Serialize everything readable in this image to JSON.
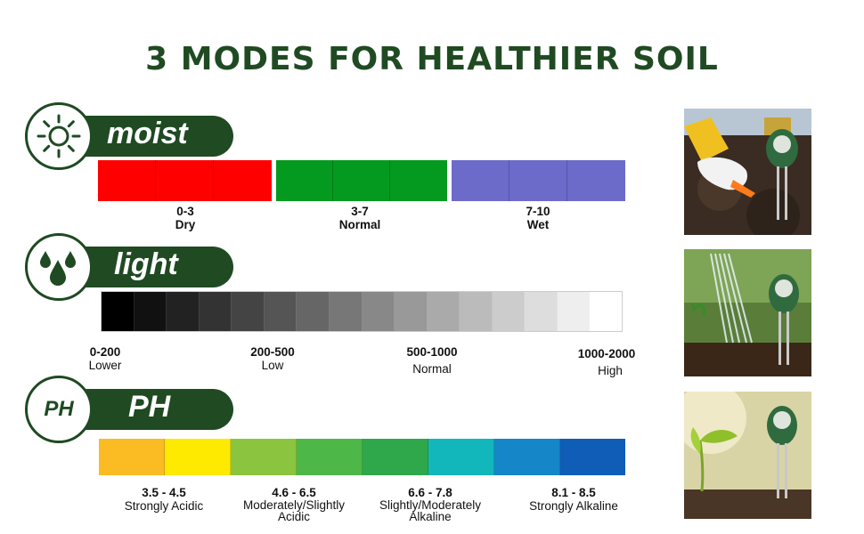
{
  "title": "3 MODES FOR HEALTHIER SOIL",
  "moist": {
    "label": "moist",
    "groups": [
      {
        "range": "0-3",
        "desc": "Dry",
        "color": "#ff0000"
      },
      {
        "range": "3-7",
        "desc": "Normal",
        "color": "#039a1f"
      },
      {
        "range": "7-10",
        "desc": "Wet",
        "color": "#6d6bc9"
      }
    ]
  },
  "light": {
    "label": "light",
    "gradient_from": "#000000",
    "gradient_to": "#ffffff",
    "groups": [
      {
        "range": "0-200",
        "desc": "Lower"
      },
      {
        "range": "200-500",
        "desc": "Low"
      },
      {
        "range": "500-1000",
        "desc": "Normal"
      },
      {
        "range": "1000-2000",
        "desc": "High"
      }
    ]
  },
  "ph": {
    "label": "PH",
    "icon_text": "PH",
    "colors": [
      "#fbbb22",
      "#fdea00",
      "#8bc53f",
      "#4db848",
      "#2ea84a",
      "#12b7bb",
      "#1586c7",
      "#0f5db7"
    ],
    "groups": [
      {
        "range": "3.5 - 4.5",
        "desc": "Strongly Acidic"
      },
      {
        "range": "4.6 - 6.5",
        "desc": "Moderately/Slightly Acidic"
      },
      {
        "range": "6.6 - 7.8",
        "desc": "Slightly/Moderately Alkaline"
      },
      {
        "range": "8.1 - 8.5",
        "desc": "Strongly Alkaline"
      }
    ]
  },
  "icons": {
    "moist": "sun-icon",
    "light": "water-drops-icon",
    "ph": "ph-text-icon"
  }
}
